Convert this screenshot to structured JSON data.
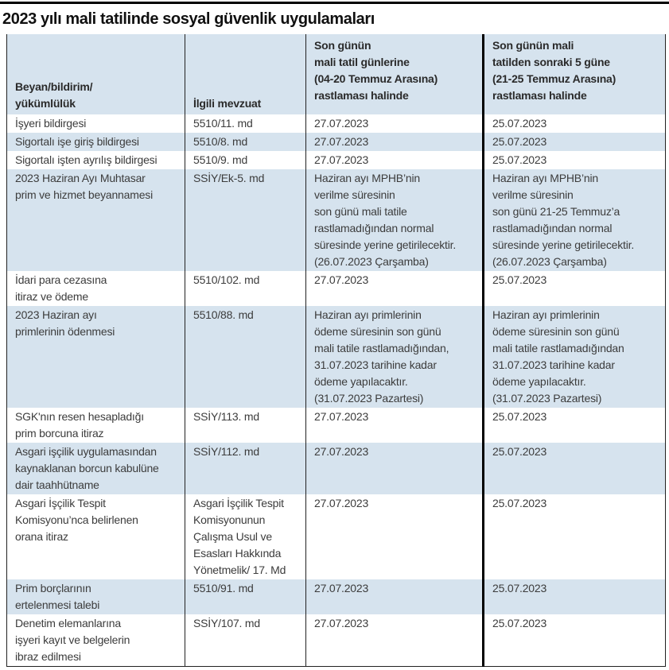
{
  "title": "2023 yılı mali tatilinde sosyal güvenlik uygulamaları",
  "colors": {
    "row_highlight": "#d6e3ee",
    "body_text": "#3c3c3c",
    "rule": "#000000"
  },
  "table": {
    "columns": [
      {
        "label": "Beyan/bildirim/\nyükümlülük"
      },
      {
        "label": "İlgili mevzuat"
      },
      {
        "label": "Son günün\nmali tatil günlerine\n(04-20 Temmuz Arasına)\nrastlaması halinde"
      },
      {
        "label": "Son günün mali\ntatilden sonraki 5 güne\n(21-25 Temmuz Arasına)\nrastlaması halinde"
      }
    ],
    "rows": [
      {
        "cells": [
          "İşyeri bildirgesi",
          "5510/11. md",
          "27.07.2023",
          "25.07.2023"
        ]
      },
      {
        "cells": [
          "Sigortalı işe giriş bildirgesi",
          "5510/8. md",
          "27.07.2023",
          "25.07.2023"
        ]
      },
      {
        "cells": [
          "Sigortalı işten ayrılış bildirgesi",
          "5510/9. md",
          "27.07.2023",
          "25.07.2023"
        ]
      },
      {
        "cells": [
          "2023 Haziran Ayı Muhtasar\nprim ve hizmet beyannamesi",
          "SSİY/Ek-5. md",
          "Haziran ayı MPHB’nin\nverilme süresinin\nson günü mali tatile\nrastlamadığından normal\nsüresinde yerine getirilecektir.\n(26.07.2023 Çarşamba)",
          "Haziran ayı MPHB’nin\nverilme süresinin\nson günü 21-25 Temmuz’a\nrastlamadığından normal\nsüresinde yerine getirilecektir.\n(26.07.2023 Çarşamba)"
        ]
      },
      {
        "cells": [
          "İdari para cezasına\nitiraz ve ödeme",
          "5510/102. md",
          "27.07.2023",
          "25.07.2023"
        ]
      },
      {
        "cells": [
          "2023 Haziran ayı\nprimlerinin ödenmesi",
          "5510/88. md",
          "Haziran ayı primlerinin\nödeme süresinin son günü\nmali tatile rastlamadığından,\n31.07.2023 tarihine kadar\nödeme yapılacaktır.\n(31.07.2023 Pazartesi)",
          "Haziran ayı primlerinin\nödeme süresinin son günü\nmali tatile rastlamadığından\n31.07.2023 tarihine kadar\nödeme yapılacaktır.\n(31.07.2023 Pazartesi)"
        ]
      },
      {
        "cells": [
          "SGK'nın resen hesapladığı\nprim borcuna itiraz",
          "SSİY/113. md",
          "27.07.2023",
          "25.07.2023"
        ]
      },
      {
        "cells": [
          "Asgari işçilik uygulamasından\nkaynaklanan borcun kabulüne\ndair taahhütname",
          "SSİY/112. md",
          "27.07.2023",
          "25.07.2023"
        ]
      },
      {
        "cells": [
          "Asgari İşçilik Tespit\nKomisyonu’nca belirlenen\norana itiraz",
          "Asgari İşçilik Tespit\nKomisyonunun\nÇalışma Usul ve\nEsasları Hakkında\nYönetmelik/ 17. Md",
          "27.07.2023",
          "25.07.2023"
        ]
      },
      {
        "cells": [
          "Prim borçlarının\nertelenmesi talebi",
          "5510/91. md",
          "27.07.2023",
          "25.07.2023"
        ]
      },
      {
        "cells": [
          "Denetim elemanlarına\nişyeri kayıt ve belgelerin\nibraz edilmesi",
          "SSİY/107. md",
          "27.07.2023",
          "25.07.2023"
        ]
      }
    ]
  }
}
